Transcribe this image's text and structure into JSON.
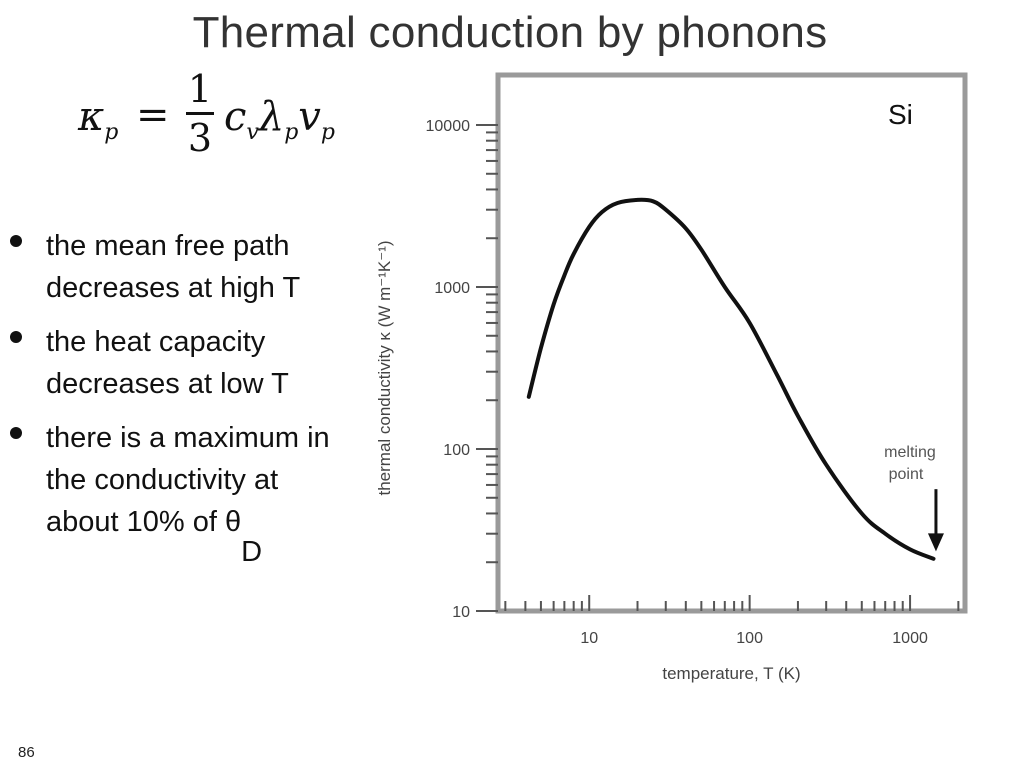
{
  "slide": {
    "title": "Thermal conduction by phonons",
    "page_number": "86"
  },
  "formula": {
    "lhs_symbol": "κ",
    "lhs_subscript": "p",
    "equals": "=",
    "numerator": "1",
    "denominator": "3",
    "rhs_c": "c",
    "rhs_c_subscript": "v",
    "rhs_lambda": "λ",
    "rhs_lambda_subscript": "p",
    "rhs_v": "v",
    "rhs_v_subscript": "p"
  },
  "bullets": [
    {
      "text": "the mean free path decreases at high T"
    },
    {
      "text": "the heat capacity decreases at low T"
    },
    {
      "text": "there is a maximum in the conductivity at about  10% of θ",
      "subscript": "D"
    }
  ],
  "chart_data": {
    "type": "line",
    "material_label": "Si",
    "xlabel": "temperature, T (K)",
    "ylabel": "thermal conductivity κ (W m⁻¹K⁻¹)",
    "xscale": "log",
    "yscale": "log",
    "xlim": [
      2.7,
      2200
    ],
    "ylim": [
      10,
      10000
    ],
    "xticks": [
      {
        "value": 10,
        "label": "10"
      },
      {
        "value": 100,
        "label": "100"
      },
      {
        "value": 1000,
        "label": "1000"
      }
    ],
    "yticks": [
      {
        "value": 10,
        "label": "10"
      },
      {
        "value": 100,
        "label": "100"
      },
      {
        "value": 1000,
        "label": "1000"
      },
      {
        "value": 10000,
        "label": "10000"
      }
    ],
    "series": [
      {
        "x": [
          4.2,
          5,
          6,
          7,
          8,
          10,
          12,
          15,
          20,
          25,
          30,
          40,
          50,
          70,
          100,
          150,
          200,
          300,
          500,
          700,
          1000,
          1400
        ],
        "y": [
          210,
          420,
          780,
          1180,
          1600,
          2350,
          2900,
          3300,
          3450,
          3380,
          3000,
          2300,
          1700,
          1000,
          600,
          280,
          160,
          80,
          40,
          30,
          24,
          21
        ]
      }
    ],
    "annotation": {
      "text_line1": "melting",
      "text_line2": "point",
      "x": 1450,
      "arrow_from_y": 32,
      "arrow_to_y": 24
    },
    "grid": false,
    "legend": "none"
  }
}
